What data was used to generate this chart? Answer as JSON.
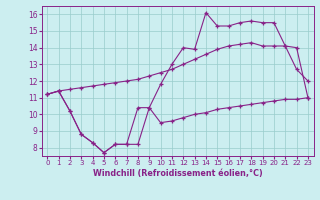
{
  "bg_color": "#cceef0",
  "line_color": "#882288",
  "grid_color": "#99cccc",
  "xlabel": "Windchill (Refroidissement éolien,°C)",
  "xlim": [
    -0.5,
    23.5
  ],
  "ylim": [
    7.5,
    16.5
  ],
  "yticks": [
    8,
    9,
    10,
    11,
    12,
    13,
    14,
    15,
    16
  ],
  "xticks": [
    0,
    1,
    2,
    3,
    4,
    5,
    6,
    7,
    8,
    9,
    10,
    11,
    12,
    13,
    14,
    15,
    16,
    17,
    18,
    19,
    20,
    21,
    22,
    23
  ],
  "line_bottom_x": [
    0,
    1,
    2,
    3,
    4,
    5,
    6,
    7,
    8,
    9,
    10,
    11,
    12,
    13,
    14,
    15,
    16,
    17,
    18,
    19,
    20,
    21,
    22,
    23
  ],
  "line_bottom_y": [
    11.2,
    11.4,
    10.2,
    8.8,
    8.3,
    7.7,
    8.2,
    8.2,
    8.2,
    10.4,
    9.5,
    9.6,
    9.8,
    10.0,
    10.1,
    10.3,
    10.4,
    10.5,
    10.6,
    10.7,
    10.8,
    10.9,
    10.9,
    11.0
  ],
  "line_mid_x": [
    0,
    1,
    2,
    3,
    4,
    5,
    6,
    7,
    8,
    9,
    10,
    11,
    12,
    13,
    14,
    15,
    16,
    17,
    18,
    19,
    20,
    21,
    22,
    23
  ],
  "line_mid_y": [
    11.2,
    11.4,
    11.5,
    11.6,
    11.7,
    11.8,
    11.9,
    12.0,
    12.1,
    12.3,
    12.5,
    12.7,
    13.0,
    13.3,
    13.6,
    13.9,
    14.1,
    14.2,
    14.3,
    14.1,
    14.1,
    14.1,
    14.0,
    11.0
  ],
  "line_top_x": [
    0,
    1,
    2,
    3,
    4,
    5,
    6,
    7,
    8,
    9,
    10,
    11,
    12,
    13,
    14,
    15,
    16,
    17,
    18,
    19,
    20,
    21,
    22,
    23
  ],
  "line_top_y": [
    11.2,
    11.4,
    10.2,
    8.8,
    8.3,
    7.7,
    8.2,
    8.2,
    10.4,
    10.4,
    11.8,
    13.0,
    14.0,
    13.9,
    16.1,
    15.3,
    15.3,
    15.5,
    15.6,
    15.5,
    15.5,
    14.1,
    12.7,
    12.0
  ]
}
